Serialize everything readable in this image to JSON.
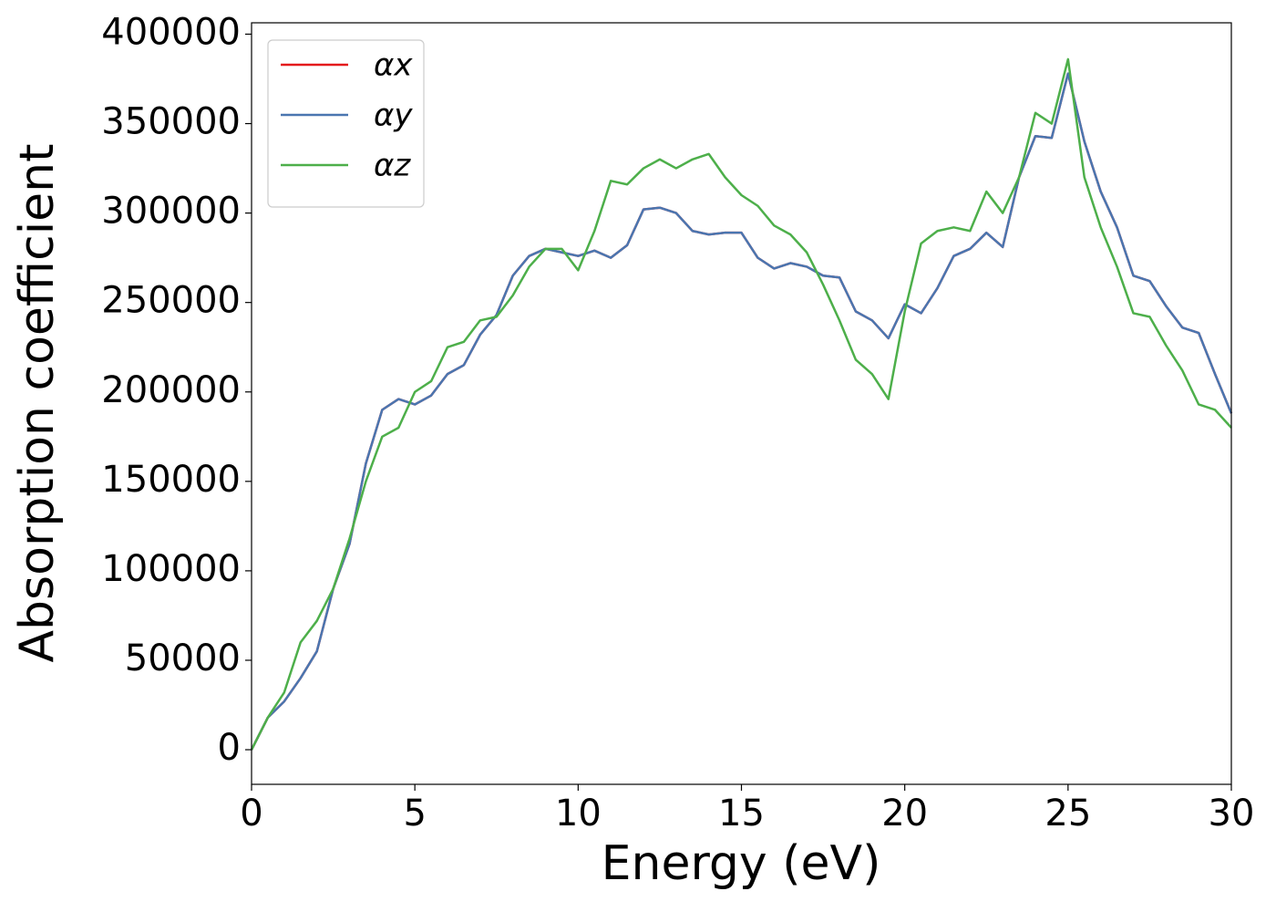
{
  "chart_data": {
    "type": "line",
    "xlabel": "Energy (eV)",
    "ylabel": "Absorption coefficient",
    "x": [
      0,
      0.5,
      1,
      1.5,
      2,
      2.5,
      3,
      3.5,
      4,
      4.5,
      5,
      5.5,
      6,
      6.5,
      7,
      7.5,
      8,
      8.5,
      9,
      9.5,
      10,
      10.5,
      11,
      11.5,
      12,
      12.5,
      13,
      13.5,
      14,
      14.5,
      15,
      15.5,
      16,
      16.5,
      17,
      17.5,
      18,
      18.5,
      19,
      19.5,
      20,
      20.5,
      21,
      21.5,
      22,
      22.5,
      23,
      23.5,
      24,
      24.5,
      25,
      25.5,
      26,
      26.5,
      27,
      27.5,
      28,
      28.5,
      29,
      29.5,
      30
    ],
    "series": [
      {
        "name": "αx",
        "color": "#e41a1c",
        "values": [
          0,
          18000,
          27000,
          40000,
          55000,
          90000,
          115000,
          160000,
          190000,
          196000,
          193000,
          198000,
          210000,
          215000,
          232000,
          243000,
          265000,
          276000,
          280000,
          278000,
          276000,
          279000,
          275000,
          282000,
          302000,
          303000,
          300000,
          290000,
          288000,
          289000,
          289000,
          275000,
          269000,
          272000,
          270000,
          265000,
          264000,
          245000,
          240000,
          230000,
          249000,
          244000,
          258000,
          276000,
          280000,
          289000,
          281000,
          320000,
          343000,
          342000,
          378000,
          340000,
          312000,
          292000,
          265000,
          262000,
          248000,
          236000,
          233000,
          210000,
          188000
        ]
      },
      {
        "name": "αy",
        "color": "#4a76b0",
        "values": [
          0,
          18000,
          27000,
          40000,
          55000,
          90000,
          115000,
          160000,
          190000,
          196000,
          193000,
          198000,
          210000,
          215000,
          232000,
          243000,
          265000,
          276000,
          280000,
          278000,
          276000,
          279000,
          275000,
          282000,
          302000,
          303000,
          300000,
          290000,
          288000,
          289000,
          289000,
          275000,
          269000,
          272000,
          270000,
          265000,
          264000,
          245000,
          240000,
          230000,
          249000,
          244000,
          258000,
          276000,
          280000,
          289000,
          281000,
          320000,
          343000,
          342000,
          378000,
          340000,
          312000,
          292000,
          265000,
          262000,
          248000,
          236000,
          233000,
          210000,
          188000
        ]
      },
      {
        "name": "αz",
        "color": "#4daf4a",
        "values": [
          0,
          18000,
          32000,
          60000,
          72000,
          90000,
          118000,
          150000,
          175000,
          180000,
          200000,
          206000,
          225000,
          228000,
          240000,
          242000,
          254000,
          270000,
          280000,
          280000,
          268000,
          290000,
          318000,
          316000,
          325000,
          330000,
          325000,
          330000,
          333000,
          320000,
          310000,
          304000,
          293000,
          288000,
          278000,
          260000,
          240000,
          218000,
          210000,
          196000,
          245000,
          283000,
          290000,
          292000,
          290000,
          312000,
          300000,
          320000,
          356000,
          350000,
          386000,
          320000,
          292000,
          270000,
          244000,
          242000,
          226000,
          212000,
          193000,
          190000,
          180000
        ]
      }
    ],
    "xlim": [
      0,
      30
    ],
    "xticks": [
      0,
      5,
      10,
      15,
      20,
      25,
      30
    ],
    "ylim": [
      -19350,
      406350
    ],
    "yticks": [
      0,
      50000,
      100000,
      150000,
      200000,
      250000,
      300000,
      350000,
      400000
    ],
    "legend": "upper left",
    "grid": false
  }
}
